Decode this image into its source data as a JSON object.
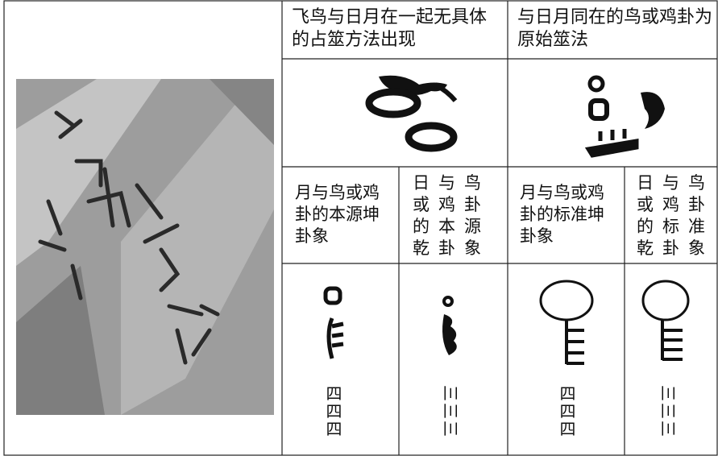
{
  "table": {
    "header": [
      "飞鸟与日月在一起无具体的占筮方法出现",
      "与日月同在的鸟或鸡卦为原始筮法"
    ],
    "subheader": [
      "月与鸟或鸡卦的本源坤卦象",
      "日与鸟或鸡卦的本源乾卦象",
      "月与鸟或鸡卦的标准坤卦象",
      "日与鸟或鸡卦的标准乾卦象"
    ],
    "glyphs": [
      "四四四",
      "三三三",
      "四四四",
      "三三三"
    ]
  }
}
